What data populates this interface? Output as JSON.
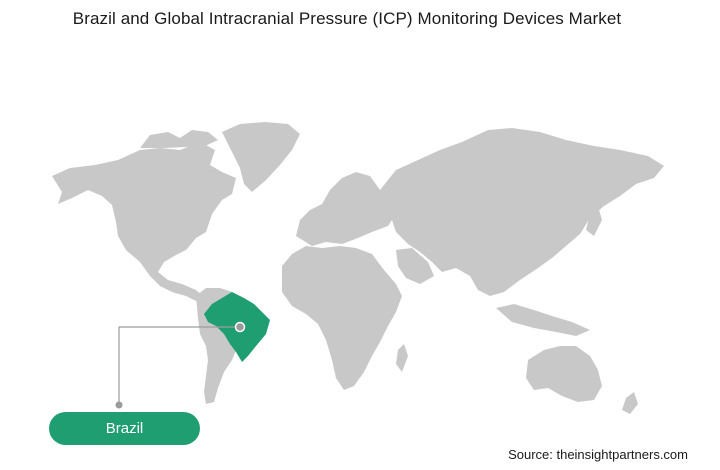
{
  "title": "Brazil and Global Intracranial Pressure (ICP) Monitoring Devices Market",
  "highlighted_country": {
    "label": "Brazil",
    "color": "#1f9e72"
  },
  "land_color": "#c8c8c8",
  "source": "Source: theinsightpartners.com"
}
